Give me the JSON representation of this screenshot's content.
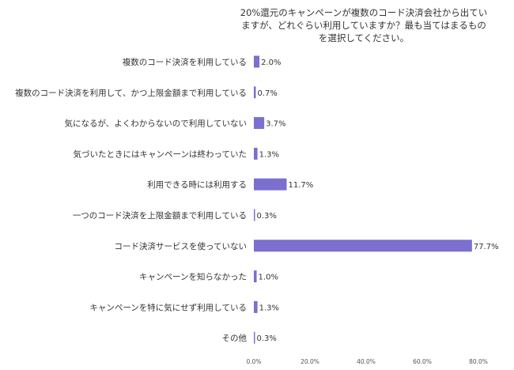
{
  "chart_data": {
    "type": "bar",
    "orientation": "horizontal",
    "title": "20%還元のキャンペーンが複数のコード決済会社から出ていますが、どれぐらい利用していますか？最も当てはまるものを選択してください。",
    "categories": [
      "複数のコード決済を利用している",
      "複数のコード決済を利用して、かつ上限金額まで利用している",
      "気になるが、よくわからないので利用していない",
      "気づいたときにはキャンペーンは終わっていた",
      "利用できる時には利用する",
      "一つのコード決済を上限金額まで利用している",
      "コード決済サービスを使っていない",
      "キャンペーンを知らなかった",
      "キャンペーンを特に気にせず利用している",
      "その他"
    ],
    "values": [
      2.0,
      0.7,
      3.7,
      1.3,
      11.7,
      0.3,
      77.7,
      1.0,
      1.3,
      0.3
    ],
    "value_labels": [
      "2.0%",
      "0.7%",
      "3.7%",
      "1.3%",
      "11.7%",
      "0.3%",
      "77.7%",
      "1.0%",
      "1.3%",
      "0.3%"
    ],
    "xlim": [
      0,
      80
    ],
    "xticks": [
      0,
      20,
      40,
      60,
      80
    ],
    "xtick_labels": [
      "0.0%",
      "20.0%",
      "40.0%",
      "60.0%",
      "80.0%"
    ],
    "grid": false,
    "bar_color": "#7b6fcf"
  }
}
